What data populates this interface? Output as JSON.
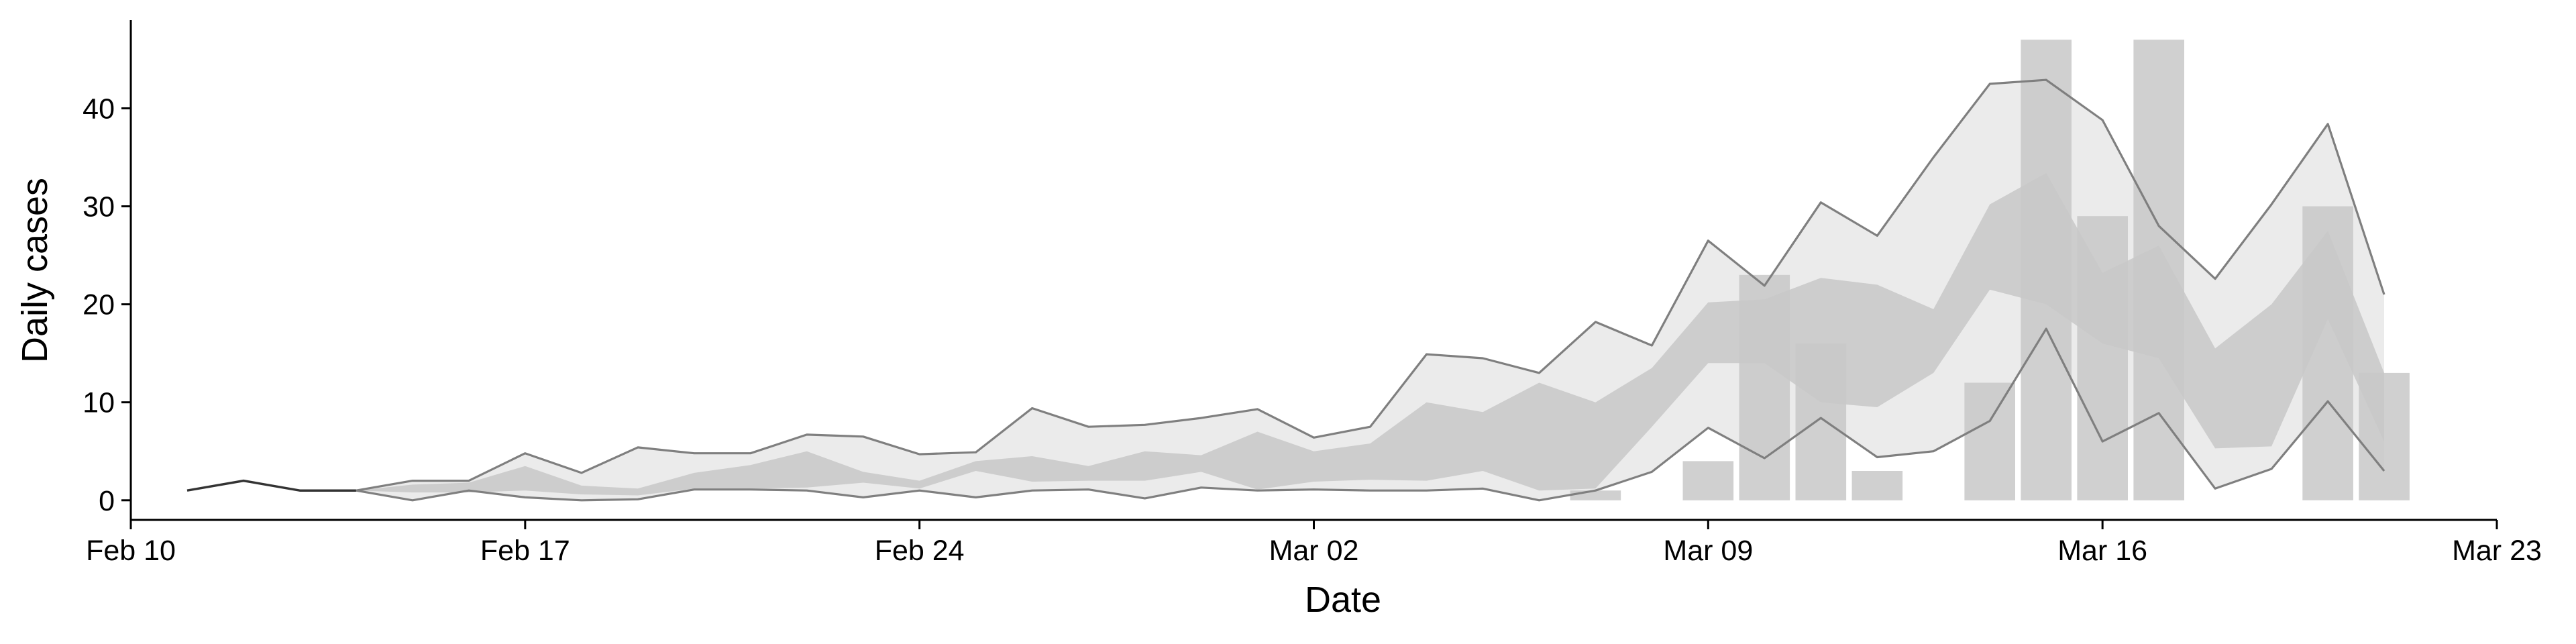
{
  "chart_data": {
    "type": "line",
    "title": "",
    "xlabel": "Date",
    "ylabel": "Daily cases",
    "x_ticks": [
      {
        "date": "2020-02-10",
        "label": "Feb 10"
      },
      {
        "date": "2020-02-17",
        "label": "Feb 17"
      },
      {
        "date": "2020-02-24",
        "label": "Feb 24"
      },
      {
        "date": "2020-03-02",
        "label": "Mar 02"
      },
      {
        "date": "2020-03-09",
        "label": "Mar 09"
      },
      {
        "date": "2020-03-16",
        "label": "Mar 16"
      },
      {
        "date": "2020-03-23",
        "label": "Mar 23"
      }
    ],
    "y_ticks": [
      0,
      10,
      20,
      30,
      40
    ],
    "xlim": [
      "2020-02-10",
      "2020-03-23"
    ],
    "ylim": [
      -2,
      49
    ],
    "grid": false,
    "colors": {
      "observed_bars": "#c8c8c8",
      "interval_outer": "#e8e8e8",
      "interval_inner": "#b9b9b9",
      "bound_lines": "#7f7f7f",
      "early_line": "#333333",
      "axis": "#000000"
    },
    "observed_cases": [
      {
        "date": "2020-03-07",
        "value": 1
      },
      {
        "date": "2020-03-09",
        "value": 4
      },
      {
        "date": "2020-03-10",
        "value": 23
      },
      {
        "date": "2020-03-11",
        "value": 16
      },
      {
        "date": "2020-03-12",
        "value": 3
      },
      {
        "date": "2020-03-14",
        "value": 12
      },
      {
        "date": "2020-03-15",
        "value": 47
      },
      {
        "date": "2020-03-16",
        "value": 29
      },
      {
        "date": "2020-03-17",
        "value": 47
      },
      {
        "date": "2020-03-20",
        "value": 30
      },
      {
        "date": "2020-03-21",
        "value": 13
      }
    ],
    "early_line": {
      "dates": [
        "2020-02-11",
        "2020-02-12",
        "2020-02-13",
        "2020-02-14"
      ],
      "values": [
        1,
        2,
        1,
        1
      ]
    },
    "estimate": {
      "dates": [
        "2020-02-14",
        "2020-02-15",
        "2020-02-16",
        "2020-02-17",
        "2020-02-18",
        "2020-02-19",
        "2020-02-20",
        "2020-02-21",
        "2020-02-22",
        "2020-02-23",
        "2020-02-24",
        "2020-02-25",
        "2020-02-26",
        "2020-02-27",
        "2020-02-28",
        "2020-02-29",
        "2020-03-01",
        "2020-03-02",
        "2020-03-03",
        "2020-03-04",
        "2020-03-05",
        "2020-03-06",
        "2020-03-07",
        "2020-03-08",
        "2020-03-09",
        "2020-03-10",
        "2020-03-11",
        "2020-03-12",
        "2020-03-13",
        "2020-03-14",
        "2020-03-15",
        "2020-03-16",
        "2020-03-17",
        "2020-03-18",
        "2020-03-19",
        "2020-03-20",
        "2020-03-21"
      ],
      "upper_90": [
        1,
        2,
        2,
        4.8,
        2.8,
        5.4,
        4.8,
        4.8,
        6.7,
        6.5,
        4.7,
        4.9,
        9.4,
        7.5,
        7.7,
        8.4,
        9.3,
        6.4,
        7.5,
        14.9,
        14.5,
        13.0,
        18.2,
        15.8,
        26.5,
        21.9,
        30.4,
        27.0,
        35.0,
        42.5,
        42.9,
        38.8,
        28.0,
        22.6,
        30.2,
        38.4,
        21.0
      ],
      "upper_50": [
        1,
        1.6,
        1.8,
        3.5,
        1.5,
        1.2,
        2.8,
        3.6,
        5.0,
        2.9,
        2.0,
        4.0,
        4.5,
        3.5,
        5.0,
        4.6,
        7.0,
        5.0,
        5.8,
        10.0,
        9.0,
        12.0,
        10.0,
        13.5,
        20.2,
        20.5,
        22.7,
        22.0,
        19.5,
        30.2,
        33.4,
        23.2,
        26.0,
        15.5,
        20.0,
        27.5,
        13.0
      ],
      "lower_50": [
        1,
        0.8,
        0.8,
        1.0,
        0.6,
        0.5,
        1.2,
        1.2,
        1.3,
        1.8,
        1.2,
        3.0,
        1.9,
        2.0,
        2.0,
        2.9,
        1.1,
        1.9,
        2.1,
        2.0,
        3.0,
        1.0,
        1.2,
        7.5,
        14.0,
        14.0,
        10.0,
        9.5,
        13.0,
        21.5,
        20.0,
        16.0,
        14.5,
        5.3,
        5.5,
        18.5,
        6.0
      ],
      "lower_90": [
        1,
        0,
        1,
        0.3,
        0,
        0.1,
        1.1,
        1.1,
        1.0,
        0.3,
        1.0,
        0.3,
        1.0,
        1.1,
        0.2,
        1.3,
        1.0,
        1.1,
        1.0,
        1.0,
        1.2,
        0,
        1.0,
        2.9,
        7.4,
        4.3,
        8.4,
        4.4,
        5.0,
        8.1,
        17.5,
        6.0,
        8.9,
        1.2,
        3.2,
        10.1,
        3.0
      ]
    }
  }
}
